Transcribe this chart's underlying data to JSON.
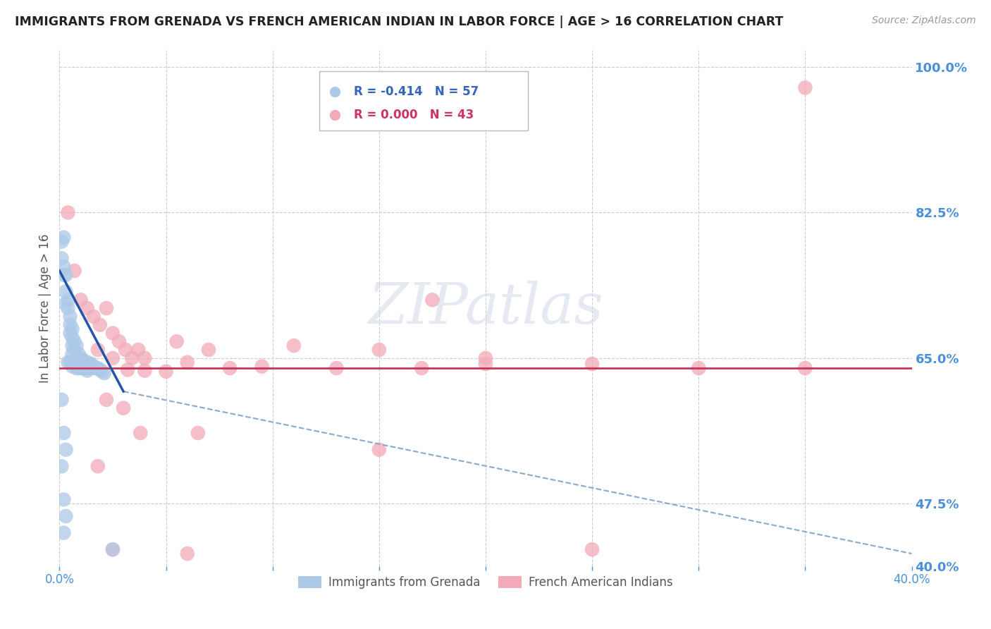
{
  "title": "IMMIGRANTS FROM GRENADA VS FRENCH AMERICAN INDIAN IN LABOR FORCE | AGE > 16 CORRELATION CHART",
  "source": "Source: ZipAtlas.com",
  "ylabel": "In Labor Force | Age > 16",
  "xlim": [
    0.0,
    0.4
  ],
  "ylim": [
    0.4,
    1.02
  ],
  "yticks": [
    1.0,
    0.825,
    0.65,
    0.475,
    0.4
  ],
  "ytick_labels": [
    "100.0%",
    "82.5%",
    "65.0%",
    "47.5%",
    "40.0%"
  ],
  "xticks": [
    0.0,
    0.05,
    0.1,
    0.15,
    0.2,
    0.25,
    0.3,
    0.35,
    0.4
  ],
  "xtick_labels": [
    "0.0%",
    "",
    "",
    "",
    "",
    "",
    "",
    "",
    "40.0%"
  ],
  "series1_color": "#adc9e8",
  "series2_color": "#f2aab8",
  "series1_label": "Immigrants from Grenada",
  "series2_label": "French American Indians",
  "legend_R1": "R = -0.414",
  "legend_N1": "N = 57",
  "legend_R2": "R = 0.000",
  "legend_N2": "N = 43",
  "reg1_color": "#2255aa",
  "reg1_dash_color": "#88aacc",
  "reg2_color": "#cc3355",
  "regression1_x0": 0.0,
  "regression1_y0": 0.755,
  "regression1_x1": 0.03,
  "regression1_y1": 0.61,
  "regression1_dash_x1": 0.4,
  "regression1_dash_y1": 0.415,
  "regression2_y": 0.638,
  "watermark": "ZIPatlas",
  "series1_x": [
    0.001,
    0.001,
    0.002,
    0.002,
    0.002,
    0.002,
    0.003,
    0.003,
    0.003,
    0.003,
    0.004,
    0.004,
    0.004,
    0.005,
    0.005,
    0.005,
    0.005,
    0.006,
    0.006,
    0.006,
    0.006,
    0.006,
    0.007,
    0.007,
    0.007,
    0.008,
    0.008,
    0.008,
    0.009,
    0.009,
    0.009,
    0.01,
    0.01,
    0.01,
    0.011,
    0.011,
    0.012,
    0.012,
    0.013,
    0.013,
    0.013,
    0.014,
    0.014,
    0.015,
    0.015,
    0.016,
    0.017,
    0.018,
    0.019,
    0.02,
    0.021,
    0.002,
    0.003,
    0.001,
    0.001,
    0.002,
    0.025
  ],
  "series1_y": [
    0.79,
    0.77,
    0.795,
    0.76,
    0.75,
    0.48,
    0.75,
    0.73,
    0.715,
    0.46,
    0.72,
    0.71,
    0.645,
    0.7,
    0.69,
    0.68,
    0.645,
    0.685,
    0.675,
    0.665,
    0.655,
    0.64,
    0.67,
    0.66,
    0.645,
    0.665,
    0.65,
    0.638,
    0.655,
    0.645,
    0.638,
    0.65,
    0.645,
    0.638,
    0.648,
    0.638,
    0.645,
    0.638,
    0.645,
    0.64,
    0.635,
    0.643,
    0.638,
    0.643,
    0.638,
    0.64,
    0.638,
    0.638,
    0.636,
    0.634,
    0.632,
    0.56,
    0.54,
    0.6,
    0.52,
    0.44,
    0.42
  ],
  "series2_x": [
    0.004,
    0.007,
    0.01,
    0.013,
    0.016,
    0.019,
    0.022,
    0.025,
    0.028,
    0.031,
    0.034,
    0.037,
    0.04,
    0.055,
    0.06,
    0.07,
    0.08,
    0.095,
    0.11,
    0.13,
    0.15,
    0.17,
    0.175,
    0.2,
    0.25,
    0.3,
    0.35,
    0.018,
    0.025,
    0.032,
    0.04,
    0.05,
    0.022,
    0.03,
    0.038,
    0.065,
    0.15,
    0.018,
    0.025,
    0.06,
    0.2,
    0.25,
    0.35
  ],
  "series2_y": [
    0.825,
    0.755,
    0.72,
    0.71,
    0.7,
    0.69,
    0.71,
    0.68,
    0.67,
    0.66,
    0.65,
    0.66,
    0.65,
    0.67,
    0.645,
    0.66,
    0.638,
    0.64,
    0.665,
    0.638,
    0.66,
    0.638,
    0.72,
    0.65,
    0.643,
    0.638,
    0.638,
    0.66,
    0.65,
    0.636,
    0.635,
    0.634,
    0.6,
    0.59,
    0.56,
    0.56,
    0.54,
    0.52,
    0.42,
    0.415,
    0.643,
    0.42,
    0.975
  ],
  "bg_color": "#ffffff",
  "grid_color": "#cccccc",
  "title_color": "#222222",
  "axis_label_color": "#555555",
  "tick_label_color": "#4a90d9",
  "right_tick_color": "#4a90d9"
}
